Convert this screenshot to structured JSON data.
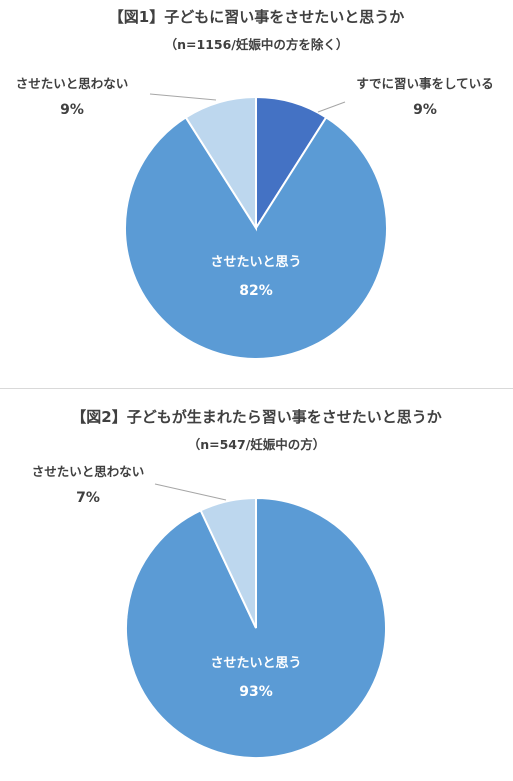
{
  "chart_data": [
    {
      "type": "pie",
      "title": "【図1】子どもに習い事をさせたいと思うか",
      "subtitle": "（n=1156/妊娠中の方を除く）",
      "start_angle_deg": 0,
      "direction": "clockwise",
      "slices": [
        {
          "label": "すでに習い事をしている",
          "value": 9,
          "display": "9%",
          "color": "#4472c4"
        },
        {
          "label": "させたいと思う",
          "value": 82,
          "display": "82%",
          "color": "#5b9bd5"
        },
        {
          "label": "させたいと思わない",
          "value": 9,
          "display": "9%",
          "color": "#bdd7ee"
        }
      ]
    },
    {
      "type": "pie",
      "title": "【図2】子どもが生まれたら習い事をさせたいと思うか",
      "subtitle": "（n=547/妊娠中の方）",
      "start_angle_deg": 0,
      "direction": "clockwise",
      "slices": [
        {
          "label": "させたいと思う",
          "value": 93,
          "display": "93%",
          "color": "#5b9bd5"
        },
        {
          "label": "させたいと思わない",
          "value": 7,
          "display": "7%",
          "color": "#bdd7ee"
        }
      ]
    }
  ]
}
